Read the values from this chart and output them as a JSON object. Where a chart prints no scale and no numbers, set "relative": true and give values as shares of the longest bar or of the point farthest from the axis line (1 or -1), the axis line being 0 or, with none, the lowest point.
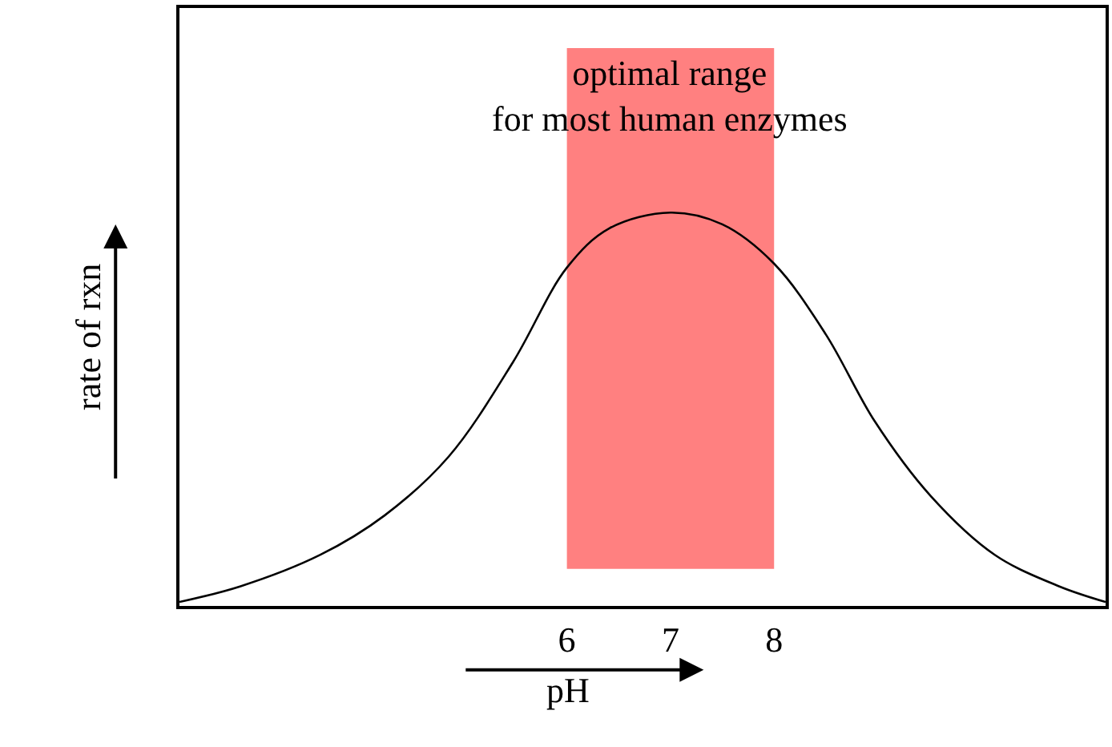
{
  "chart_data": {
    "type": "line",
    "relative": true,
    "xlabel": "pH",
    "ylabel": "rate of rxn",
    "x": [
      2.26,
      2.85,
      3.62,
      4.24,
      4.86,
      5.48,
      6.0,
      6.41,
      7.0,
      7.5,
      8.0,
      8.5,
      8.97,
      9.51,
      10.13,
      10.75,
      11.2
    ],
    "series": [
      {
        "color": "#000000",
        "values": [
          0.01,
          0.05,
          0.13,
          0.23,
          0.38,
          0.62,
          0.86,
          0.96,
          1.0,
          0.97,
          0.87,
          0.69,
          0.47,
          0.28,
          0.13,
          0.05,
          0.01
        ]
      }
    ],
    "xlim": [
      2.26,
      11.2
    ],
    "xticks": [
      6,
      7,
      8
    ],
    "bands": [
      {
        "axis": "x",
        "from": 6,
        "to": 8,
        "label": "optimal range\nfor most human enzymes",
        "color": "#ff8080"
      }
    ],
    "grid": false,
    "legend": false,
    "marker": "none",
    "line_style": "solid"
  }
}
